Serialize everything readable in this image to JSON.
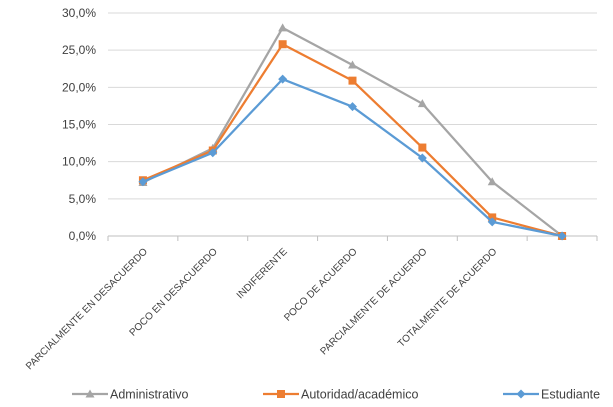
{
  "chart_data": {
    "type": "line",
    "categories": [
      "PARCIALMENTE EN DESACUERDO",
      "POCO EN DESACUERDO",
      "INDIFERENTE",
      "POCO DE ACUERDO",
      "PARCIALMENTE DE ACUERDO",
      "TOTALMENTE DE ACUERDO",
      ""
    ],
    "y_ticks": [
      "0,0%",
      "5,0%",
      "10,0%",
      "15,0%",
      "20,0%",
      "25,0%",
      "30,0%"
    ],
    "ylim": [
      0,
      30
    ],
    "grid": true,
    "legend_position": "bottom",
    "series": [
      {
        "name": "Administrativo",
        "color": "#a5a5a5",
        "marker": "triangle",
        "values": [
          7.2,
          11.8,
          28.0,
          23.0,
          17.8,
          7.3,
          0.0
        ]
      },
      {
        "name": "Autoridad/académico",
        "color": "#ed7d31",
        "marker": "square",
        "values": [
          7.5,
          11.5,
          25.8,
          20.9,
          11.9,
          2.5,
          0.0
        ]
      },
      {
        "name": "Estudiante",
        "color": "#5b9bd5",
        "marker": "diamond",
        "values": [
          7.3,
          11.2,
          21.1,
          17.4,
          10.5,
          1.9,
          0.0
        ]
      }
    ]
  }
}
